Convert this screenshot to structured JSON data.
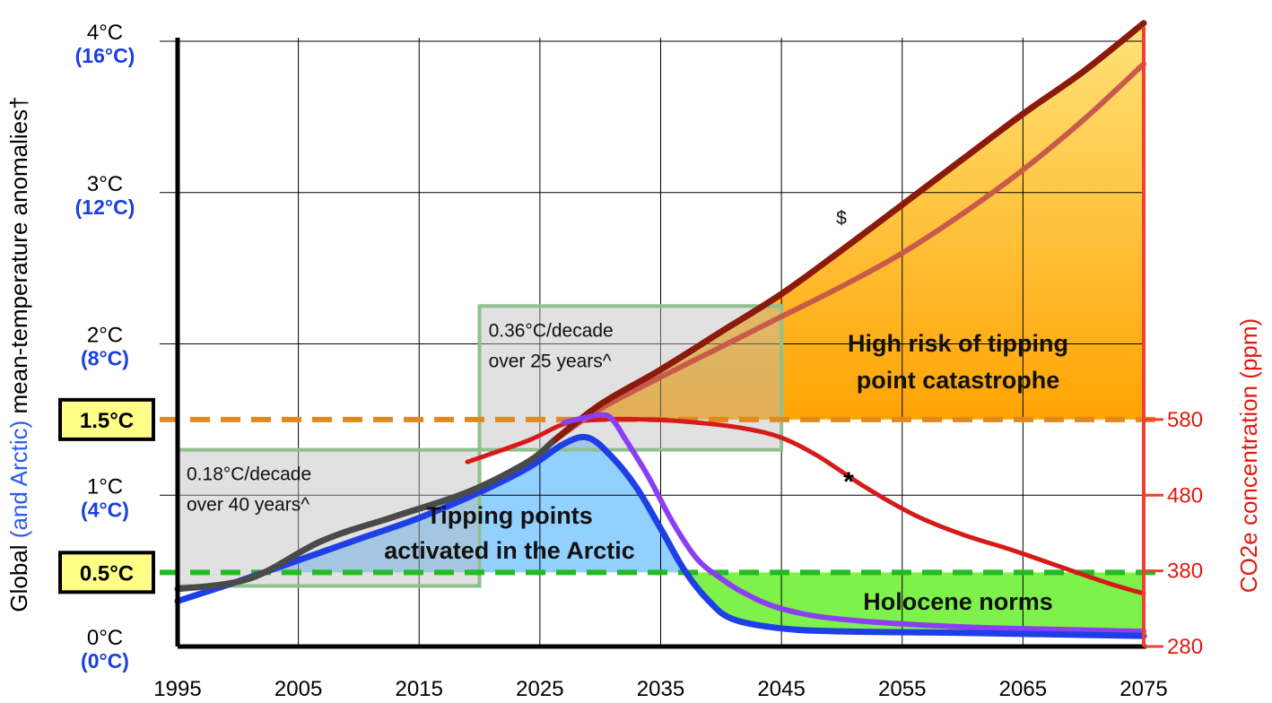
{
  "chart_data": {
    "type": "line",
    "ylabel": {
      "prefix": "Global ",
      "highlight": "(and Arctic)",
      "suffix": " mean-temperature anomalies†"
    },
    "y2label": "CO2e concentration (ppm)",
    "x_ticks": [
      "1995",
      "2005",
      "2015",
      "2025",
      "2035",
      "2045",
      "2055",
      "2065",
      "2075"
    ],
    "xlim": [
      1995,
      2075
    ],
    "ylim": [
      0,
      4.1
    ],
    "y_ticks": [
      {
        "value": 0,
        "label": "0°C",
        "arctic": "(0°C)"
      },
      {
        "value": 1,
        "label": "1°C",
        "arctic": "(4°C)"
      },
      {
        "value": 2,
        "label": "2°C",
        "arctic": "(8°C)"
      },
      {
        "value": 3,
        "label": "3°C",
        "arctic": "(12°C)"
      },
      {
        "value": 4,
        "label": "4°C",
        "arctic": "(16°C)"
      }
    ],
    "y2_ticks": [
      {
        "value": 0,
        "label": "280"
      },
      {
        "value": 0.5,
        "label": "380"
      },
      {
        "value": 1,
        "label": "480"
      },
      {
        "value": 1.5,
        "label": "580"
      }
    ],
    "thresholds": [
      {
        "label": "1.5°C",
        "value": 1.5,
        "color": "#e08a1e"
      },
      {
        "label": "0.5°C",
        "value": 0.49,
        "color": "#22bb22"
      }
    ],
    "boxes": [
      {
        "lines": [
          "0.18°C/decade",
          "over 40 years^"
        ],
        "x0": 1995,
        "x1": 2020,
        "y0": 0.4,
        "y1": 1.3
      },
      {
        "lines": [
          "0.36°C/decade",
          "over 25 years^"
        ],
        "x0": 2020,
        "x1": 2045,
        "y0": 1.3,
        "y1": 2.25
      }
    ],
    "regions": [
      {
        "name": "tipping",
        "lines": [
          "High risk of tipping",
          "point catastrophe"
        ]
      },
      {
        "name": "arctic",
        "lines": [
          "Tipping points",
          "activated in the Arctic"
        ]
      },
      {
        "name": "holocene",
        "lines": [
          "Holocene norms"
        ]
      }
    ],
    "markers": [
      "$",
      "*"
    ],
    "series": [
      {
        "key": "observed",
        "color": "#4a4a4a",
        "x": [
          1995,
          2001,
          2007,
          2013,
          2019,
          2024,
          2026
        ],
        "y": [
          0.38,
          0.45,
          0.7,
          0.86,
          1.02,
          1.22,
          1.35
        ]
      },
      {
        "key": "upper",
        "color": "#8b1a0c",
        "x": [
          2026,
          2030,
          2035,
          2040,
          2045,
          2050,
          2055,
          2060,
          2065,
          2070,
          2075
        ],
        "y": [
          1.35,
          1.6,
          1.83,
          2.08,
          2.33,
          2.62,
          2.92,
          3.22,
          3.52,
          3.8,
          4.12
        ]
      },
      {
        "key": "lower",
        "color": "#c85a4a",
        "x": [
          2026,
          2030,
          2035,
          2040,
          2045,
          2050,
          2055,
          2060,
          2065,
          2070,
          2075
        ],
        "y": [
          1.35,
          1.57,
          1.78,
          1.98,
          2.18,
          2.38,
          2.6,
          2.86,
          3.15,
          3.48,
          3.85
        ]
      },
      {
        "key": "blue",
        "color": "#1f3fe6",
        "x": [
          1995,
          2000,
          2005,
          2010,
          2015,
          2020,
          2024,
          2027,
          2029,
          2031,
          2033,
          2035,
          2037,
          2039,
          2041,
          2045,
          2050,
          2060,
          2075
        ],
        "y": [
          0.3,
          0.43,
          0.57,
          0.71,
          0.85,
          1.02,
          1.18,
          1.34,
          1.38,
          1.25,
          1.05,
          0.78,
          0.5,
          0.3,
          0.18,
          0.12,
          0.1,
          0.09,
          0.07
        ]
      },
      {
        "key": "purple",
        "color": "#8b3ff2",
        "x": [
          2027,
          2030,
          2031,
          2032,
          2034,
          2036,
          2038,
          2040,
          2042,
          2045,
          2050,
          2060,
          2075
        ],
        "y": [
          1.48,
          1.53,
          1.5,
          1.38,
          1.12,
          0.82,
          0.58,
          0.45,
          0.35,
          0.25,
          0.18,
          0.13,
          0.1
        ]
      },
      {
        "key": "red",
        "color": "#d61a1a",
        "x": [
          2019,
          2024,
          2027,
          2030,
          2034,
          2038,
          2042,
          2045,
          2048,
          2052,
          2056,
          2060,
          2064,
          2068,
          2072,
          2075
        ],
        "y": [
          1.22,
          1.36,
          1.47,
          1.5,
          1.5,
          1.48,
          1.44,
          1.38,
          1.26,
          1.05,
          0.87,
          0.74,
          0.64,
          0.53,
          0.42,
          0.35
        ]
      }
    ]
  }
}
